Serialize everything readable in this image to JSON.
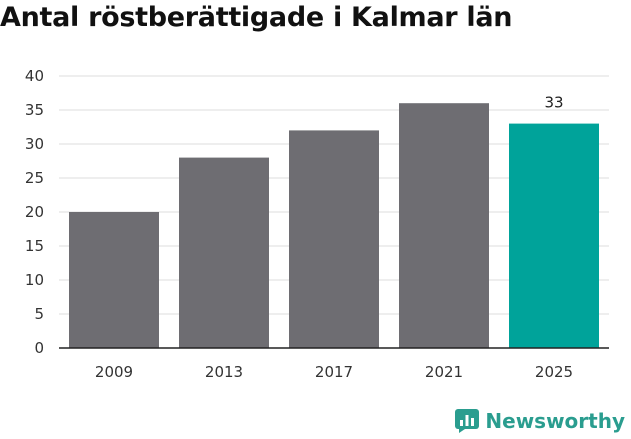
{
  "chart_data": {
    "type": "bar",
    "title": "Antal röstberättigade i Kalmar län",
    "categories": [
      "2009",
      "2013",
      "2017",
      "2021",
      "2025"
    ],
    "values": [
      20,
      28,
      32,
      36,
      33
    ],
    "ylim": [
      0,
      40
    ],
    "yticks": [
      0,
      5,
      10,
      15,
      20,
      25,
      30,
      35,
      40
    ],
    "data_labels": [
      null,
      null,
      null,
      null,
      "33"
    ],
    "bar_colors": [
      "#6e6d72",
      "#6e6d72",
      "#6e6d72",
      "#6e6d72",
      "#00a39a"
    ],
    "grid": true,
    "xlabel": "",
    "ylabel": ""
  },
  "brand": {
    "name": "Newsworthy",
    "logo_icon": "newsworthy-bar-chart-icon",
    "color": "#2a9d8f"
  }
}
